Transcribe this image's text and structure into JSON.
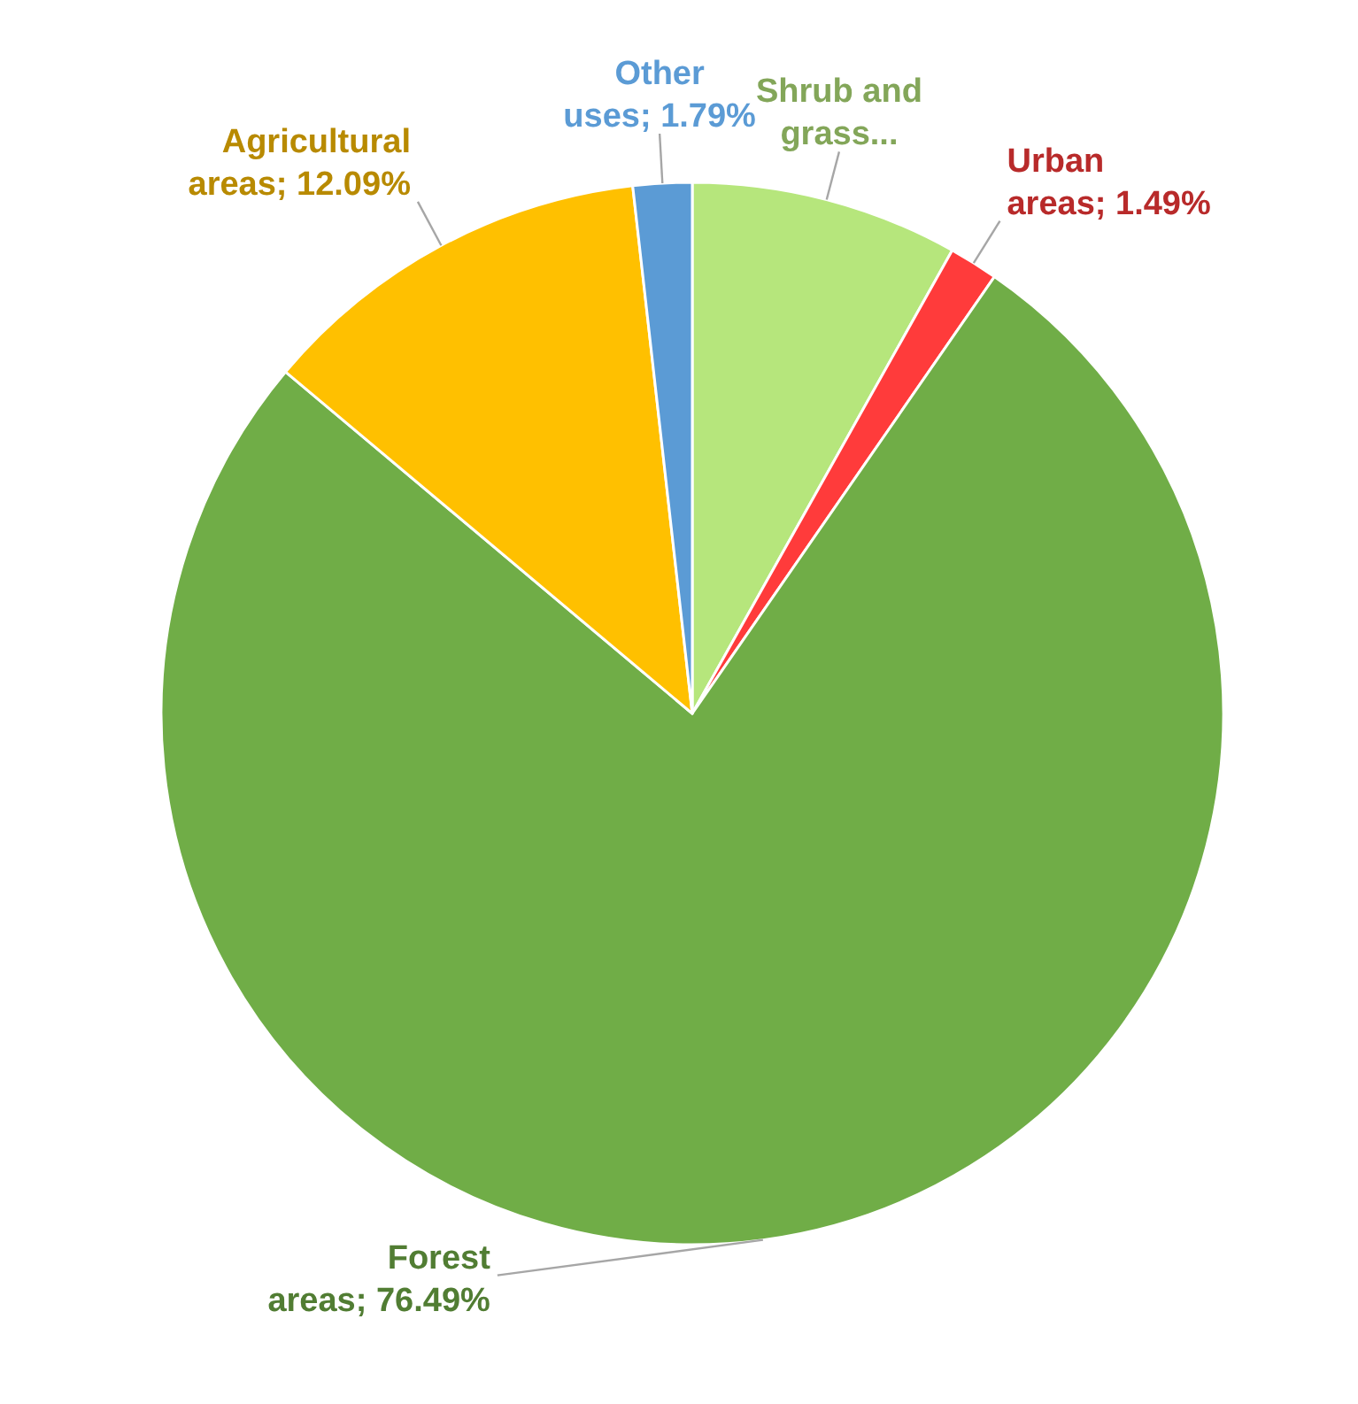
{
  "chart_data": {
    "type": "pie",
    "categories": [
      "Shrub and grass...",
      "Urban areas",
      "Forest areas",
      "Agricultural areas",
      "Other uses"
    ],
    "values": [
      8.14,
      1.49,
      76.49,
      12.09,
      1.79
    ],
    "value_labels": [
      null,
      "1.49%",
      "76.49%",
      "12.09%",
      "1.79%"
    ],
    "colors": [
      "#b6e67c",
      "#ff3b3b",
      "#70ad47",
      "#ffc000",
      "#5b9bd5"
    ]
  }
}
